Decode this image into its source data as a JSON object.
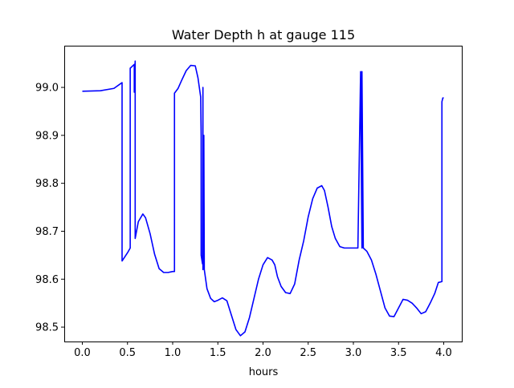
{
  "chart_data": {
    "type": "line",
    "title": "Water Depth h at gauge 115",
    "xlabel": "hours",
    "ylabel": "",
    "xlim": [
      -0.2,
      4.2
    ],
    "ylim": [
      98.47,
      99.087
    ],
    "x_ticks": [
      0.0,
      0.5,
      1.0,
      1.5,
      2.0,
      2.5,
      3.0,
      3.5,
      4.0
    ],
    "x_tick_labels": [
      "0.0",
      "0.5",
      "1.0",
      "1.5",
      "2.0",
      "2.5",
      "3.0",
      "3.5",
      "4.0"
    ],
    "y_ticks": [
      98.5,
      98.6,
      98.7,
      98.8,
      98.9,
      99.0
    ],
    "y_tick_labels": [
      "98.5",
      "98.6",
      "98.7",
      "98.8",
      "98.9",
      "99.0"
    ],
    "grid": false,
    "series": [
      {
        "color": "#0000ff",
        "x": [
          0.0,
          0.2,
          0.35,
          0.44,
          0.44,
          0.5,
          0.53,
          0.53,
          0.575,
          0.575,
          0.585,
          0.585,
          0.62,
          0.67,
          0.7,
          0.75,
          0.8,
          0.85,
          0.9,
          0.95,
          1.0,
          1.02,
          1.02,
          1.06,
          1.1,
          1.15,
          1.2,
          1.25,
          1.28,
          1.31,
          1.315,
          1.315,
          1.33,
          1.335,
          1.335,
          1.345,
          1.345,
          1.35,
          1.38,
          1.42,
          1.46,
          1.5,
          1.55,
          1.6,
          1.65,
          1.7,
          1.75,
          1.8,
          1.85,
          1.9,
          1.95,
          2.0,
          2.05,
          2.1,
          2.13,
          2.16,
          2.2,
          2.25,
          2.3,
          2.35,
          2.4,
          2.45,
          2.5,
          2.55,
          2.6,
          2.65,
          2.68,
          2.72,
          2.76,
          2.8,
          2.85,
          2.9,
          2.95,
          3.0,
          3.05,
          3.08,
          3.08,
          3.095,
          3.095,
          3.11,
          3.15,
          3.2,
          3.25,
          3.3,
          3.35,
          3.4,
          3.45,
          3.5,
          3.55,
          3.6,
          3.65,
          3.7,
          3.75,
          3.8,
          3.85,
          3.9,
          3.94,
          3.98,
          3.98,
          3.99,
          4.0
        ],
        "y": [
          98.992,
          98.993,
          98.998,
          99.01,
          98.638,
          98.655,
          98.665,
          99.04,
          99.048,
          98.99,
          99.055,
          98.685,
          98.72,
          98.736,
          98.728,
          98.695,
          98.652,
          98.622,
          98.614,
          98.614,
          98.616,
          98.616,
          98.988,
          98.998,
          99.015,
          99.035,
          99.046,
          99.045,
          99.02,
          98.98,
          98.9,
          98.65,
          98.632,
          99.0,
          98.62,
          98.63,
          98.9,
          98.62,
          98.58,
          98.56,
          98.553,
          98.556,
          98.561,
          98.555,
          98.525,
          98.495,
          98.482,
          98.49,
          98.52,
          98.56,
          98.6,
          98.63,
          98.645,
          98.64,
          98.63,
          98.605,
          98.585,
          98.572,
          98.57,
          98.59,
          98.64,
          98.68,
          98.73,
          98.768,
          98.79,
          98.795,
          98.785,
          98.75,
          98.71,
          98.685,
          98.668,
          98.665,
          98.665,
          98.665,
          98.665,
          99.033,
          99.033,
          98.665,
          99.033,
          98.665,
          98.658,
          98.64,
          98.61,
          98.575,
          98.54,
          98.523,
          98.522,
          98.54,
          98.558,
          98.556,
          98.55,
          98.54,
          98.528,
          98.532,
          98.55,
          98.57,
          98.593,
          98.595,
          98.97,
          98.978,
          98.978
        ]
      }
    ]
  }
}
